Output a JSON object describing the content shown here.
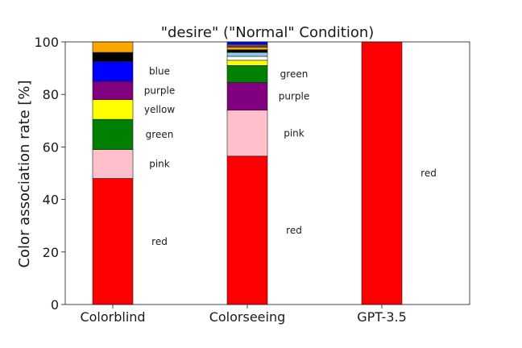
{
  "chart_data": {
    "type": "bar",
    "stacked": true,
    "title": "\"desire\" (\"Normal\" Condition)",
    "xlabel": "",
    "ylabel": "Color association rate [%]",
    "ylim": [
      0,
      100
    ],
    "yticks": [
      0,
      20,
      40,
      60,
      80,
      100
    ],
    "grid": false,
    "categories": [
      "Colorblind",
      "Colorseeing",
      "GPT-3.5"
    ],
    "bars": [
      {
        "category": "Colorblind",
        "segments": [
          {
            "color_name": "red",
            "value": 48,
            "label": "red"
          },
          {
            "color_name": "pink",
            "value": 11,
            "label": "pink"
          },
          {
            "color_name": "green",
            "value": 11.5,
            "label": "green"
          },
          {
            "color_name": "yellow",
            "value": 7.5,
            "label": "yellow"
          },
          {
            "color_name": "purple",
            "value": 7,
            "label": "purple"
          },
          {
            "color_name": "blue",
            "value": 7.5,
            "label": "blue"
          },
          {
            "color_name": "black",
            "value": 3.5,
            "label": ""
          },
          {
            "color_name": "orange",
            "value": 4,
            "label": ""
          }
        ]
      },
      {
        "category": "Colorseeing",
        "segments": [
          {
            "color_name": "red",
            "value": 56.5,
            "label": "red"
          },
          {
            "color_name": "pink",
            "value": 17.5,
            "label": "pink"
          },
          {
            "color_name": "purple",
            "value": 10.5,
            "label": "purple"
          },
          {
            "color_name": "green",
            "value": 6.5,
            "label": "green"
          },
          {
            "color_name": "yellow",
            "value": 2,
            "label": ""
          },
          {
            "color_name": "white",
            "value": 1.5,
            "label": ""
          },
          {
            "color_name": "lightblue",
            "value": 1.5,
            "label": ""
          },
          {
            "color_name": "black",
            "value": 1,
            "label": ""
          },
          {
            "color_name": "orange",
            "value": 1,
            "label": ""
          },
          {
            "color_name": "brown",
            "value": 0.5,
            "label": ""
          },
          {
            "color_name": "gray",
            "value": 0.5,
            "label": ""
          },
          {
            "color_name": "blue",
            "value": 1,
            "label": ""
          }
        ]
      },
      {
        "category": "GPT-3.5",
        "segments": [
          {
            "color_name": "red",
            "value": 100,
            "label": "red"
          }
        ]
      }
    ],
    "colors": {
      "red": "#ff0000",
      "pink": "#ffc0cb",
      "green": "#008000",
      "yellow": "#ffff00",
      "purple": "#800080",
      "blue": "#0000ff",
      "black": "#000000",
      "orange": "#ffa500",
      "white": "#ffffff",
      "lightblue": "#87ceeb",
      "brown": "#a0522d",
      "gray": "#808080"
    }
  }
}
